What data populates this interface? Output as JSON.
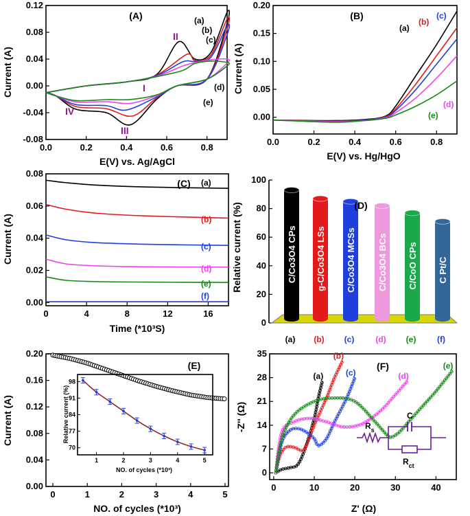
{
  "figure_panels": [
    "(A)",
    "(B)",
    "(C)",
    "(D)",
    "(E)",
    "(F)"
  ],
  "colors": {
    "a": "#000000",
    "b": "#e31a1c",
    "c": "#1f3fdd",
    "d": "#ee44ee",
    "e": "#138a13",
    "f": "#1f3fdd"
  },
  "chart_data": [
    {
      "panel": "(A)",
      "type": "line",
      "xlabel": "E(V) vs. Ag/AgCl",
      "ylabel": "Current (A)",
      "xlim": [
        0.0,
        0.9
      ],
      "ylim": [
        -0.08,
        0.12
      ],
      "xticks": [
        "0.0",
        "0.2",
        "0.4",
        "0.6",
        "0.8"
      ],
      "yticks": [
        "-0.08",
        "-0.04",
        "0.00",
        "0.04",
        "0.08",
        "0.12"
      ],
      "series_labels": [
        "(a)",
        "(b)",
        "(c)",
        "(d)",
        "(e)"
      ],
      "annotations": [
        "I",
        "II",
        "III",
        "IV"
      ],
      "peaks": {
        "oxidation_II": [
          {
            "series": "(a)",
            "x": 0.66,
            "y": 0.066
          },
          {
            "series": "(b)",
            "x": 0.7,
            "y": 0.047
          },
          {
            "series": "(c)",
            "x": 0.68,
            "y": 0.036
          }
        ],
        "reduction_III": [
          {
            "series": "(a)",
            "x": 0.42,
            "y": -0.058
          },
          {
            "series": "(b)",
            "x": 0.43,
            "y": -0.045
          },
          {
            "series": "(c)",
            "x": 0.4,
            "y": -0.036
          }
        ],
        "end_current_0_9V": [
          {
            "series": "(a)",
            "y": 0.11
          },
          {
            "series": "(b)",
            "y": 0.1
          },
          {
            "series": "(c)",
            "y": 0.09
          },
          {
            "series": "(d)",
            "y": 0.04
          },
          {
            "series": "(e)",
            "y": 0.035
          }
        ]
      }
    },
    {
      "panel": "(B)",
      "type": "line",
      "xlabel": "E(V) vs. Hg/HgO",
      "ylabel": "Current (A)",
      "xlim": [
        0.0,
        0.9
      ],
      "ylim": [
        -0.03,
        0.2
      ],
      "xticks": [
        "0.0",
        "0.2",
        "0.4",
        "0.6",
        "0.8"
      ],
      "yticks": [
        "0.00",
        "0.05",
        "0.10",
        "0.15",
        "0.20"
      ],
      "series": [
        {
          "name": "(a)",
          "x": [
            0.0,
            0.3,
            0.45,
            0.55,
            0.6,
            0.7,
            0.8,
            0.9
          ],
          "y": [
            -0.005,
            -0.006,
            -0.004,
            0.002,
            0.02,
            0.075,
            0.13,
            0.19
          ]
        },
        {
          "name": "(b)",
          "x": [
            0.0,
            0.3,
            0.45,
            0.55,
            0.6,
            0.7,
            0.8,
            0.9
          ],
          "y": [
            -0.005,
            -0.007,
            -0.005,
            0.001,
            0.015,
            0.06,
            0.11,
            0.16
          ]
        },
        {
          "name": "(c)",
          "x": [
            0.0,
            0.3,
            0.45,
            0.55,
            0.6,
            0.7,
            0.8,
            0.9
          ],
          "y": [
            -0.005,
            -0.008,
            -0.005,
            0.0,
            0.012,
            0.05,
            0.095,
            0.14
          ]
        },
        {
          "name": "(d)",
          "x": [
            0.0,
            0.3,
            0.45,
            0.55,
            0.6,
            0.7,
            0.8,
            0.9
          ],
          "y": [
            -0.005,
            -0.008,
            -0.006,
            -0.001,
            0.008,
            0.035,
            0.07,
            0.11
          ]
        },
        {
          "name": "(e)",
          "x": [
            0.0,
            0.3,
            0.45,
            0.55,
            0.6,
            0.7,
            0.8,
            0.9
          ],
          "y": [
            -0.005,
            -0.009,
            -0.006,
            -0.002,
            0.004,
            0.02,
            0.04,
            0.065
          ]
        }
      ]
    },
    {
      "panel": "(C)",
      "type": "line",
      "xlabel": "Time (*10³S)",
      "ylabel": "Current (A)",
      "xlim": [
        0,
        18
      ],
      "ylim": [
        -0.002,
        0.08
      ],
      "xticks": [
        "0",
        "4",
        "8",
        "12",
        "16"
      ],
      "yticks": [
        "0.00",
        "0.02",
        "0.04",
        "0.06",
        "0.08"
      ],
      "series": [
        {
          "name": "(a)",
          "x": [
            0,
            2,
            5,
            10,
            18
          ],
          "y": [
            0.076,
            0.0745,
            0.073,
            0.0718,
            0.071
          ]
        },
        {
          "name": "(b)",
          "x": [
            0,
            2,
            5,
            10,
            18
          ],
          "y": [
            0.061,
            0.058,
            0.0555,
            0.0538,
            0.0525
          ]
        },
        {
          "name": "(c)",
          "x": [
            0,
            2,
            5,
            10,
            18
          ],
          "y": [
            0.042,
            0.039,
            0.0372,
            0.0362,
            0.0355
          ]
        },
        {
          "name": "(d)",
          "x": [
            0,
            2,
            5,
            10,
            18
          ],
          "y": [
            0.027,
            0.024,
            0.0228,
            0.0222,
            0.022
          ]
        },
        {
          "name": "(e)",
          "x": [
            0,
            2,
            5,
            10,
            18
          ],
          "y": [
            0.016,
            0.0138,
            0.013,
            0.0127,
            0.0125
          ]
        },
        {
          "name": "(f)",
          "x": [
            0,
            18
          ],
          "y": [
            0.0005,
            0.0005
          ]
        }
      ]
    },
    {
      "panel": "(D)",
      "type": "bar",
      "ylabel": "Relative current (%)",
      "ylim": [
        0,
        100
      ],
      "yticks": [
        "0",
        "20",
        "40",
        "60",
        "80",
        "100"
      ],
      "categories": [
        "(a)",
        "(b)",
        "(c)",
        "(d)",
        "(e)",
        "(f)"
      ],
      "bar_labels": [
        "C/Co3O4 CPs",
        "g-C/Co3O4 LSs",
        "C/Co3O4 MCSs",
        "C/Co3O4 BCs",
        "C/CoO CPs",
        "C Pt/C"
      ],
      "values": [
        93,
        87,
        85,
        82,
        77,
        71
      ]
    },
    {
      "panel": "(E)",
      "type": "scatter",
      "xlabel": "NO. of cycles  (*10³)",
      "ylabel": "Current (A)",
      "xlim": [
        -0.2,
        5.1
      ],
      "ylim": [
        0.0,
        0.2
      ],
      "xticks": [
        "0",
        "1",
        "2",
        "3",
        "4",
        "5"
      ],
      "yticks": [
        "0.00",
        "0.04",
        "0.08",
        "0.12",
        "0.16",
        "0.20"
      ],
      "x": [
        0,
        0.5,
        1,
        1.5,
        2,
        2.5,
        3,
        3.5,
        4,
        4.5,
        5
      ],
      "y": [
        0.198,
        0.193,
        0.186,
        0.177,
        0.168,
        0.159,
        0.151,
        0.144,
        0.138,
        0.134,
        0.132
      ],
      "inset": {
        "xlabel": "NO. of cycles (*10³)",
        "ylabel": "Relative current (%)",
        "xlim": [
          0.3,
          5.3
        ],
        "ylim": [
          67,
          101
        ],
        "xticks": [
          "1",
          "2",
          "3",
          "4",
          "5"
        ],
        "yticks": [
          "70",
          "77",
          "84",
          "91",
          "98"
        ],
        "x": [
          0.5,
          1,
          1.5,
          2,
          2.5,
          3,
          3.5,
          4,
          4.5,
          5
        ],
        "y": [
          98.5,
          93.5,
          89.5,
          85.5,
          81.5,
          78,
          75,
          72.5,
          70.5,
          69
        ]
      }
    },
    {
      "panel": "(F)",
      "type": "scatter",
      "xlabel": "Z' (Ω)",
      "ylabel": "-Z'' (Ω)",
      "xlim": [
        -1,
        45
      ],
      "ylim": [
        -2,
        35
      ],
      "xticks": [
        "0",
        "10",
        "20",
        "30",
        "40"
      ],
      "yticks": [
        "0",
        "7",
        "14",
        "21",
        "28",
        "35"
      ],
      "series": [
        {
          "name": "(a)",
          "x": [
            0.5,
            2,
            4,
            6,
            8,
            10,
            11,
            12
          ],
          "y": [
            0,
            1,
            1.5,
            2.5,
            8,
            16,
            22,
            27
          ]
        },
        {
          "name": "(b)",
          "x": [
            0.5,
            1.5,
            3,
            5,
            7,
            8,
            10,
            13,
            15,
            17
          ],
          "y": [
            0,
            5,
            7.5,
            7.5,
            6.5,
            8,
            14,
            22,
            28,
            33
          ]
        },
        {
          "name": "(c)",
          "x": [
            0.5,
            2,
            4,
            6,
            8,
            10,
            11,
            13,
            15,
            18,
            20
          ],
          "y": [
            0,
            9,
            12.5,
            13,
            12,
            10,
            8,
            10,
            15,
            22,
            28
          ]
        },
        {
          "name": "(d)",
          "x": [
            0.5,
            2,
            5,
            9,
            13,
            17,
            21,
            24,
            27,
            30,
            33
          ],
          "y": [
            0,
            12,
            15,
            16,
            15,
            13.5,
            14,
            16,
            19,
            23,
            27
          ]
        },
        {
          "name": "(e)",
          "x": [
            0.5,
            2,
            5,
            10,
            15,
            20,
            25,
            28,
            29,
            31,
            34,
            37,
            40,
            44
          ],
          "y": [
            0,
            10,
            17,
            21,
            22,
            21,
            15,
            11,
            10.5,
            12,
            16,
            20,
            24,
            30
          ]
        }
      ],
      "circuit": {
        "r1": "R",
        "r1_sub": "s",
        "cap": "C",
        "r2": "R",
        "r2_sub": "ct"
      }
    }
  ]
}
